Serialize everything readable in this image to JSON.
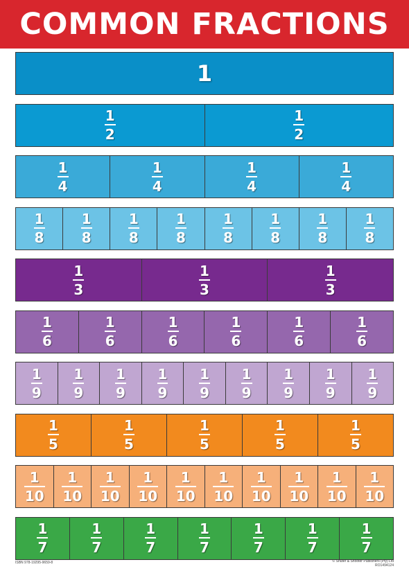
{
  "title": "COMMON FRACTIONS",
  "rows": [
    {
      "name": "whole",
      "color": "#0a8fc8",
      "whole": "1",
      "numerator": "",
      "denominator": "",
      "count": 1
    },
    {
      "name": "halves",
      "color": "#0b9ad2",
      "whole": "",
      "numerator": "1",
      "denominator": "2",
      "count": 2
    },
    {
      "name": "quarters",
      "color": "#3aaad8",
      "whole": "",
      "numerator": "1",
      "denominator": "4",
      "count": 4
    },
    {
      "name": "eighths",
      "color": "#6cc3e6",
      "whole": "",
      "numerator": "1",
      "denominator": "8",
      "count": 8
    },
    {
      "name": "thirds",
      "color": "#772a8e",
      "whole": "",
      "numerator": "1",
      "denominator": "3",
      "count": 3
    },
    {
      "name": "sixths",
      "color": "#9567ad",
      "whole": "",
      "numerator": "1",
      "denominator": "6",
      "count": 6
    },
    {
      "name": "ninths",
      "color": "#c0a6d1",
      "whole": "",
      "numerator": "1",
      "denominator": "9",
      "count": 9
    },
    {
      "name": "fifths",
      "color": "#f28a1e",
      "whole": "",
      "numerator": "1",
      "denominator": "5",
      "count": 5
    },
    {
      "name": "tenths",
      "color": "#f6b07a",
      "whole": "",
      "numerator": "1",
      "denominator": "10",
      "count": 10
    },
    {
      "name": "sevenths",
      "color": "#3aa847",
      "whole": "",
      "numerator": "1",
      "denominator": "7",
      "count": 7
    }
  ],
  "footer": {
    "isbn": "ISBN 978-19295-9659-8",
    "publisher": "© Shuter & Shooter Publishers (Pty) Ltd",
    "code": "RO1494124"
  }
}
